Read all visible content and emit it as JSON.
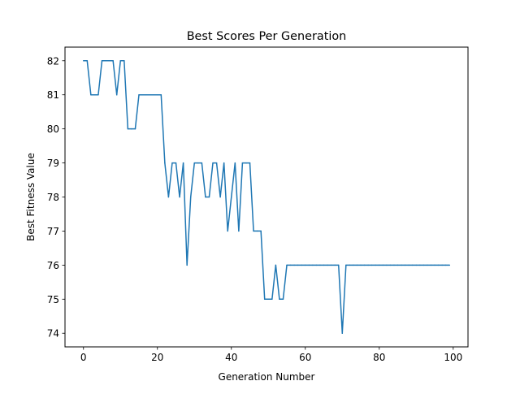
{
  "chart_data": {
    "type": "line",
    "title": "Best Scores Per Generation",
    "xlabel": "Generation Number",
    "ylabel": "Best Fitness Value",
    "xlim": [
      -5,
      104
    ],
    "ylim": [
      73.6,
      82.4
    ],
    "xticks": [
      0,
      20,
      40,
      60,
      80,
      100
    ],
    "yticks": [
      74,
      75,
      76,
      77,
      78,
      79,
      80,
      81,
      82
    ],
    "grid": false,
    "legend": "none",
    "line_color": "#1f77b4",
    "series": [
      {
        "x": [
          0,
          1,
          2,
          3,
          4,
          5,
          6,
          7,
          8,
          9,
          10,
          11,
          12,
          13,
          14,
          15,
          16,
          17,
          18,
          19,
          20,
          21,
          22,
          23,
          24,
          25,
          26,
          27,
          28,
          29,
          30,
          31,
          32,
          33,
          34,
          35,
          36,
          37,
          38,
          39,
          40,
          41,
          42,
          43,
          44,
          45,
          46,
          47,
          48,
          49,
          50,
          51,
          52,
          53,
          54,
          55,
          56,
          57,
          58,
          59,
          60,
          61,
          62,
          63,
          64,
          65,
          66,
          67,
          68,
          69,
          70,
          71,
          72,
          73,
          74,
          75,
          76,
          77,
          78,
          79,
          80,
          81,
          82,
          83,
          84,
          85,
          86,
          87,
          88,
          89,
          90,
          91,
          92,
          93,
          94,
          95,
          96,
          97,
          98,
          99
        ],
        "values": [
          82,
          82,
          81,
          81,
          81,
          82,
          82,
          82,
          82,
          81,
          82,
          82,
          80,
          80,
          80,
          81,
          81,
          81,
          81,
          81,
          81,
          81,
          79,
          78,
          79,
          79,
          78,
          79,
          76,
          78,
          79,
          79,
          79,
          78,
          78,
          79,
          79,
          78,
          79,
          77,
          78,
          79,
          77,
          79,
          79,
          79,
          77,
          77,
          77,
          75,
          75,
          75,
          76,
          75,
          75,
          76,
          76,
          76,
          76,
          76,
          76,
          76,
          76,
          76,
          76,
          76,
          76,
          76,
          76,
          76,
          74,
          76,
          76,
          76,
          76,
          76,
          76,
          76,
          76,
          76,
          76,
          76,
          76,
          76,
          76,
          76,
          76,
          76,
          76,
          76,
          76,
          76,
          76,
          76,
          76,
          76,
          76,
          76,
          76,
          76
        ]
      }
    ]
  }
}
